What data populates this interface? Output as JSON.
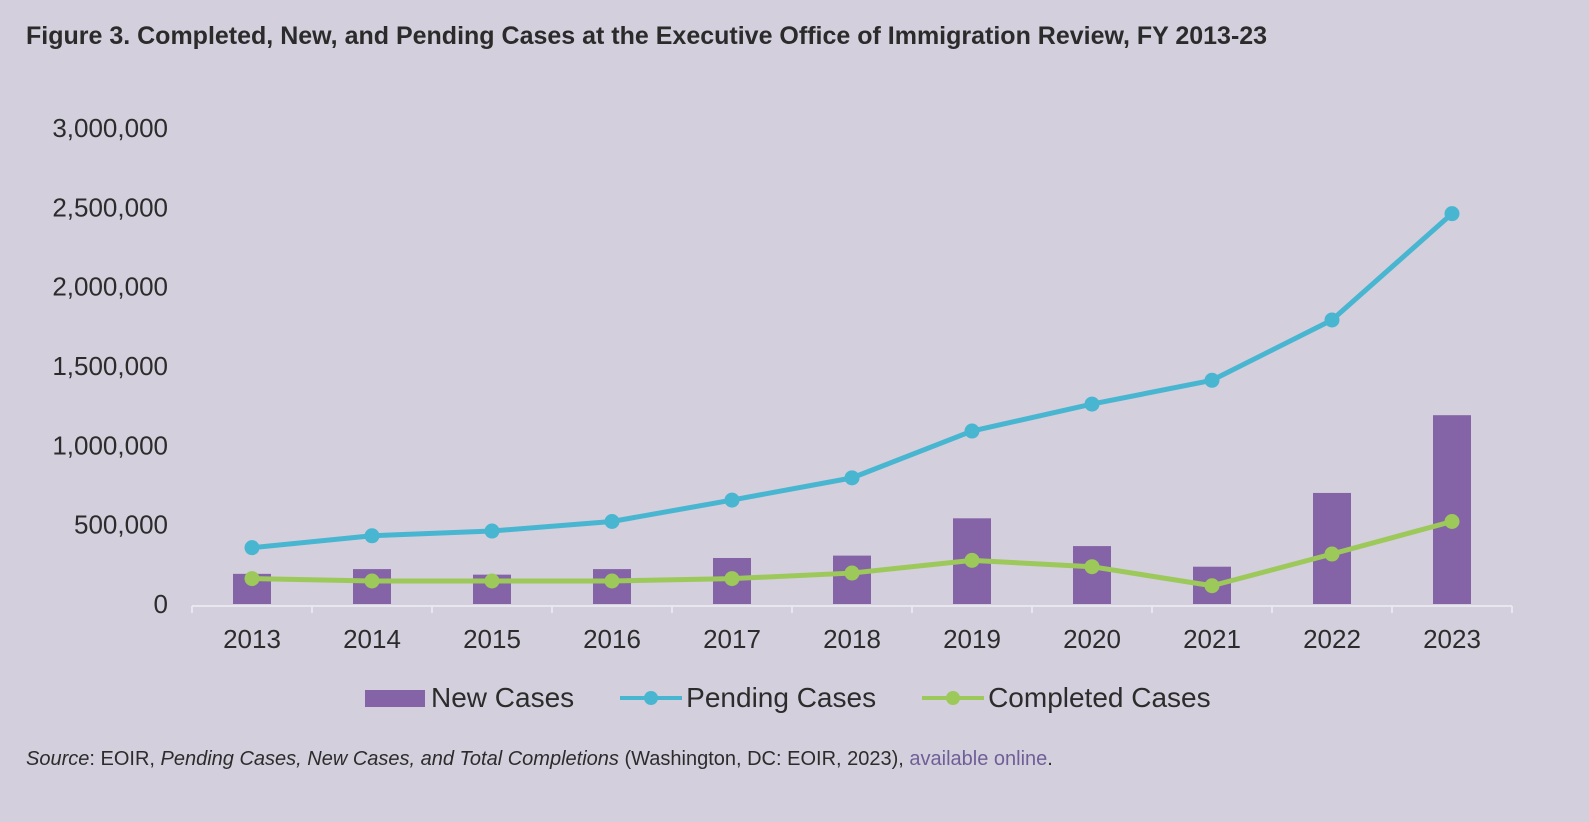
{
  "title": "Figure 3. Completed, New, and Pending Cases at the Executive Office of Immigration Review, FY 2013-23",
  "colors": {
    "new_cases": "#8464a6",
    "pending_cases": "#48b6d1",
    "completed_cases": "#9cc95a",
    "background": "#d3cfdc"
  },
  "chart_data": {
    "type": "bar",
    "categories": [
      "2013",
      "2014",
      "2015",
      "2016",
      "2017",
      "2018",
      "2019",
      "2020",
      "2021",
      "2022",
      "2023"
    ],
    "ylim": [
      0,
      3000000
    ],
    "y_ticks": [
      "3,000,000",
      "2,500,000",
      "2,000,000",
      "1,500,000",
      "1,000,000",
      "500,000",
      "0"
    ],
    "y_tick_values": [
      3000000,
      2500000,
      2000000,
      1500000,
      1000000,
      500000,
      0
    ],
    "grid": false,
    "legend_position": "bottom",
    "series": [
      {
        "name": "New Cases",
        "type": "bar",
        "color": "#8464a6",
        "values": [
          190000,
          220000,
          185000,
          220000,
          290000,
          305000,
          540000,
          365000,
          235000,
          700000,
          1190000
        ]
      },
      {
        "name": "Pending Cases",
        "type": "line",
        "color": "#48b6d1",
        "values": [
          355000,
          430000,
          460000,
          520000,
          655000,
          795000,
          1090000,
          1260000,
          1410000,
          1790000,
          2460000
        ]
      },
      {
        "name": "Completed Cases",
        "type": "line",
        "color": "#9cc95a",
        "values": [
          160000,
          145000,
          145000,
          145000,
          160000,
          195000,
          275000,
          235000,
          115000,
          315000,
          520000
        ]
      }
    ]
  },
  "legend": {
    "new": "New Cases",
    "pending": "Pending Cases",
    "completed": "Completed Cases"
  },
  "source": {
    "label": "Source",
    "sep": ": EOIR, ",
    "doc_title": "Pending Cases, New Cases, and Total Completions",
    "details": " (Washington, DC: EOIR, 2023), ",
    "link_text": "available online",
    "end": "."
  }
}
